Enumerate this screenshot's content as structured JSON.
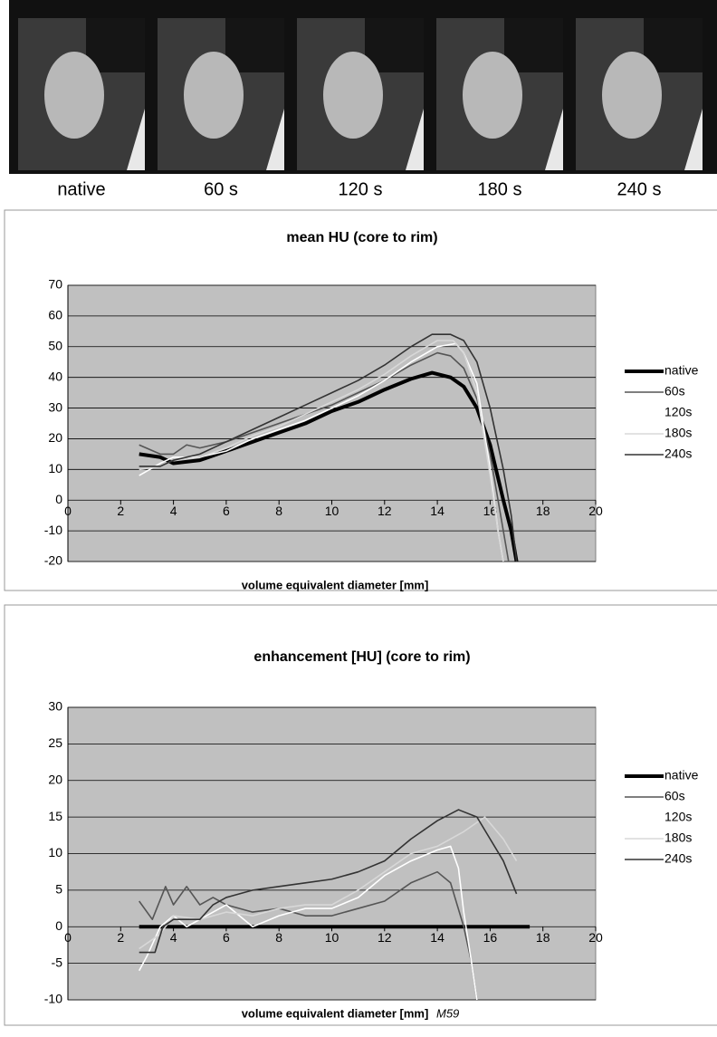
{
  "image_labels": [
    "native",
    "60 s",
    "120 s",
    "180 s",
    "240 s"
  ],
  "chart_data": [
    {
      "type": "line",
      "title": "mean HU  (core to rim)",
      "x_label": "volume equivalent diameter [mm]",
      "xlim": [
        0,
        20
      ],
      "xticks": [
        0,
        2,
        4,
        6,
        8,
        10,
        12,
        14,
        16,
        18,
        20
      ],
      "ylim": [
        -20,
        70
      ],
      "yticks": [
        -20,
        -10,
        0,
        10,
        20,
        30,
        40,
        50,
        60,
        70
      ],
      "grid": true,
      "legend": "right",
      "series": [
        {
          "name": "native",
          "color": "#000000",
          "x": [
            2.7,
            3.5,
            4,
            5,
            6,
            7,
            8,
            9,
            10,
            11,
            12,
            13,
            13.8,
            14.5,
            15,
            15.5,
            16,
            16.5,
            16.8,
            17
          ],
          "values": [
            15,
            14,
            12,
            13,
            16,
            19,
            22,
            25,
            29,
            32,
            36,
            39.5,
            41.5,
            40,
            37,
            30,
            18,
            0,
            -10,
            -20
          ]
        },
        {
          "name": "60s",
          "color": "#555555",
          "x": [
            2.7,
            3.5,
            4,
            4.5,
            5,
            6,
            7,
            8,
            9,
            10,
            11,
            12,
            13,
            14,
            14.5,
            15,
            15.5,
            16,
            16.3,
            16.5,
            16.7
          ],
          "values": [
            18,
            15,
            15,
            18,
            17,
            19,
            22,
            25,
            28,
            31,
            35,
            39,
            44,
            48,
            47,
            43,
            33,
            15,
            0,
            -10,
            -20
          ]
        },
        {
          "name": "120s",
          "color": "#ffffff",
          "x": [
            2.7,
            3.5,
            4,
            5,
            6,
            7,
            8,
            9,
            10,
            11,
            12,
            13,
            14,
            14.7,
            15,
            15.5,
            16,
            16.3,
            16.5
          ],
          "values": [
            8,
            12,
            14,
            14,
            16,
            20,
            23,
            26,
            30,
            34,
            39,
            45,
            50,
            51,
            48,
            38,
            10,
            -10,
            -20
          ]
        },
        {
          "name": "180s",
          "color": "#d8d8d8",
          "x": [
            2.7,
            3.5,
            4,
            5,
            6,
            7,
            8,
            9,
            10,
            11,
            12,
            13,
            14,
            14.6,
            15,
            15.5,
            16,
            16.3,
            16.5
          ],
          "values": [
            10,
            11,
            13,
            14,
            17,
            21,
            24,
            28,
            32,
            36,
            41,
            47,
            52,
            52,
            48,
            35,
            8,
            -10,
            -20
          ]
        },
        {
          "name": "240s",
          "color": "#333333",
          "x": [
            2.7,
            3.5,
            4,
            5,
            6,
            7,
            8,
            9,
            10,
            11,
            12,
            13,
            13.8,
            14.5,
            15,
            15.5,
            16,
            16.5,
            16.8,
            17
          ],
          "values": [
            11,
            11,
            13,
            15,
            19,
            23,
            27,
            31,
            35,
            39,
            44,
            50,
            54,
            54,
            52,
            45,
            30,
            10,
            -5,
            -20
          ]
        }
      ]
    },
    {
      "type": "line",
      "title": "enhancement [HU]  (core to rim)",
      "x_label": "volume equivalent diameter [mm]",
      "annotation": "M59",
      "xlim": [
        0,
        20
      ],
      "xticks": [
        0,
        2,
        4,
        6,
        8,
        10,
        12,
        14,
        16,
        18,
        20
      ],
      "ylim": [
        -10,
        30
      ],
      "yticks": [
        -10,
        -5,
        0,
        5,
        10,
        15,
        20,
        25,
        30
      ],
      "grid": true,
      "legend": "right",
      "series": [
        {
          "name": "native",
          "color": "#000000",
          "x": [
            2.7,
            17.5
          ],
          "values": [
            0,
            0
          ]
        },
        {
          "name": "60s",
          "color": "#555555",
          "x": [
            2.7,
            3.2,
            3.7,
            4,
            4.5,
            5,
            5.5,
            6,
            7,
            8,
            9,
            10,
            11,
            12,
            13,
            14,
            14.5,
            15,
            15.3,
            15.5
          ],
          "values": [
            3.5,
            1,
            5.5,
            3,
            5.5,
            3,
            4,
            3,
            2,
            2.5,
            1.5,
            1.5,
            2.5,
            3.5,
            6,
            7.5,
            6,
            0,
            -5,
            -10
          ]
        },
        {
          "name": "120s",
          "color": "#ffffff",
          "x": [
            2.7,
            3,
            3.5,
            4,
            4.5,
            5,
            6,
            7,
            8,
            9,
            10,
            11,
            12,
            13,
            14,
            14.5,
            14.8,
            15,
            15.3,
            15.5
          ],
          "values": [
            -6,
            -4,
            0,
            1.5,
            0,
            1,
            3,
            0,
            1.5,
            2.5,
            2.5,
            4,
            7,
            9,
            10.5,
            11,
            8,
            2,
            -5,
            -10
          ]
        },
        {
          "name": "180s",
          "color": "#d8d8d8",
          "x": [
            2.7,
            3.5,
            4,
            5,
            6,
            7,
            8,
            9,
            10,
            11,
            12,
            13,
            14,
            15,
            15.8,
            16.5,
            17
          ],
          "values": [
            -3,
            -1,
            1.5,
            1,
            2,
            1.5,
            2.5,
            3,
            3,
            5,
            7.5,
            10,
            11,
            13,
            15,
            12,
            9
          ]
        },
        {
          "name": "240s",
          "color": "#333333",
          "x": [
            2.7,
            3.3,
            3.6,
            4,
            5,
            5.5,
            6,
            7,
            8,
            9,
            10,
            11,
            12,
            13,
            14,
            14.8,
            15.5,
            16,
            16.5,
            17
          ],
          "values": [
            -3.5,
            -3.5,
            0,
            1,
            1,
            3,
            4,
            5,
            5.5,
            6,
            6.5,
            7.5,
            9,
            12,
            14.5,
            16,
            15,
            12,
            9,
            4.5
          ]
        }
      ]
    }
  ]
}
